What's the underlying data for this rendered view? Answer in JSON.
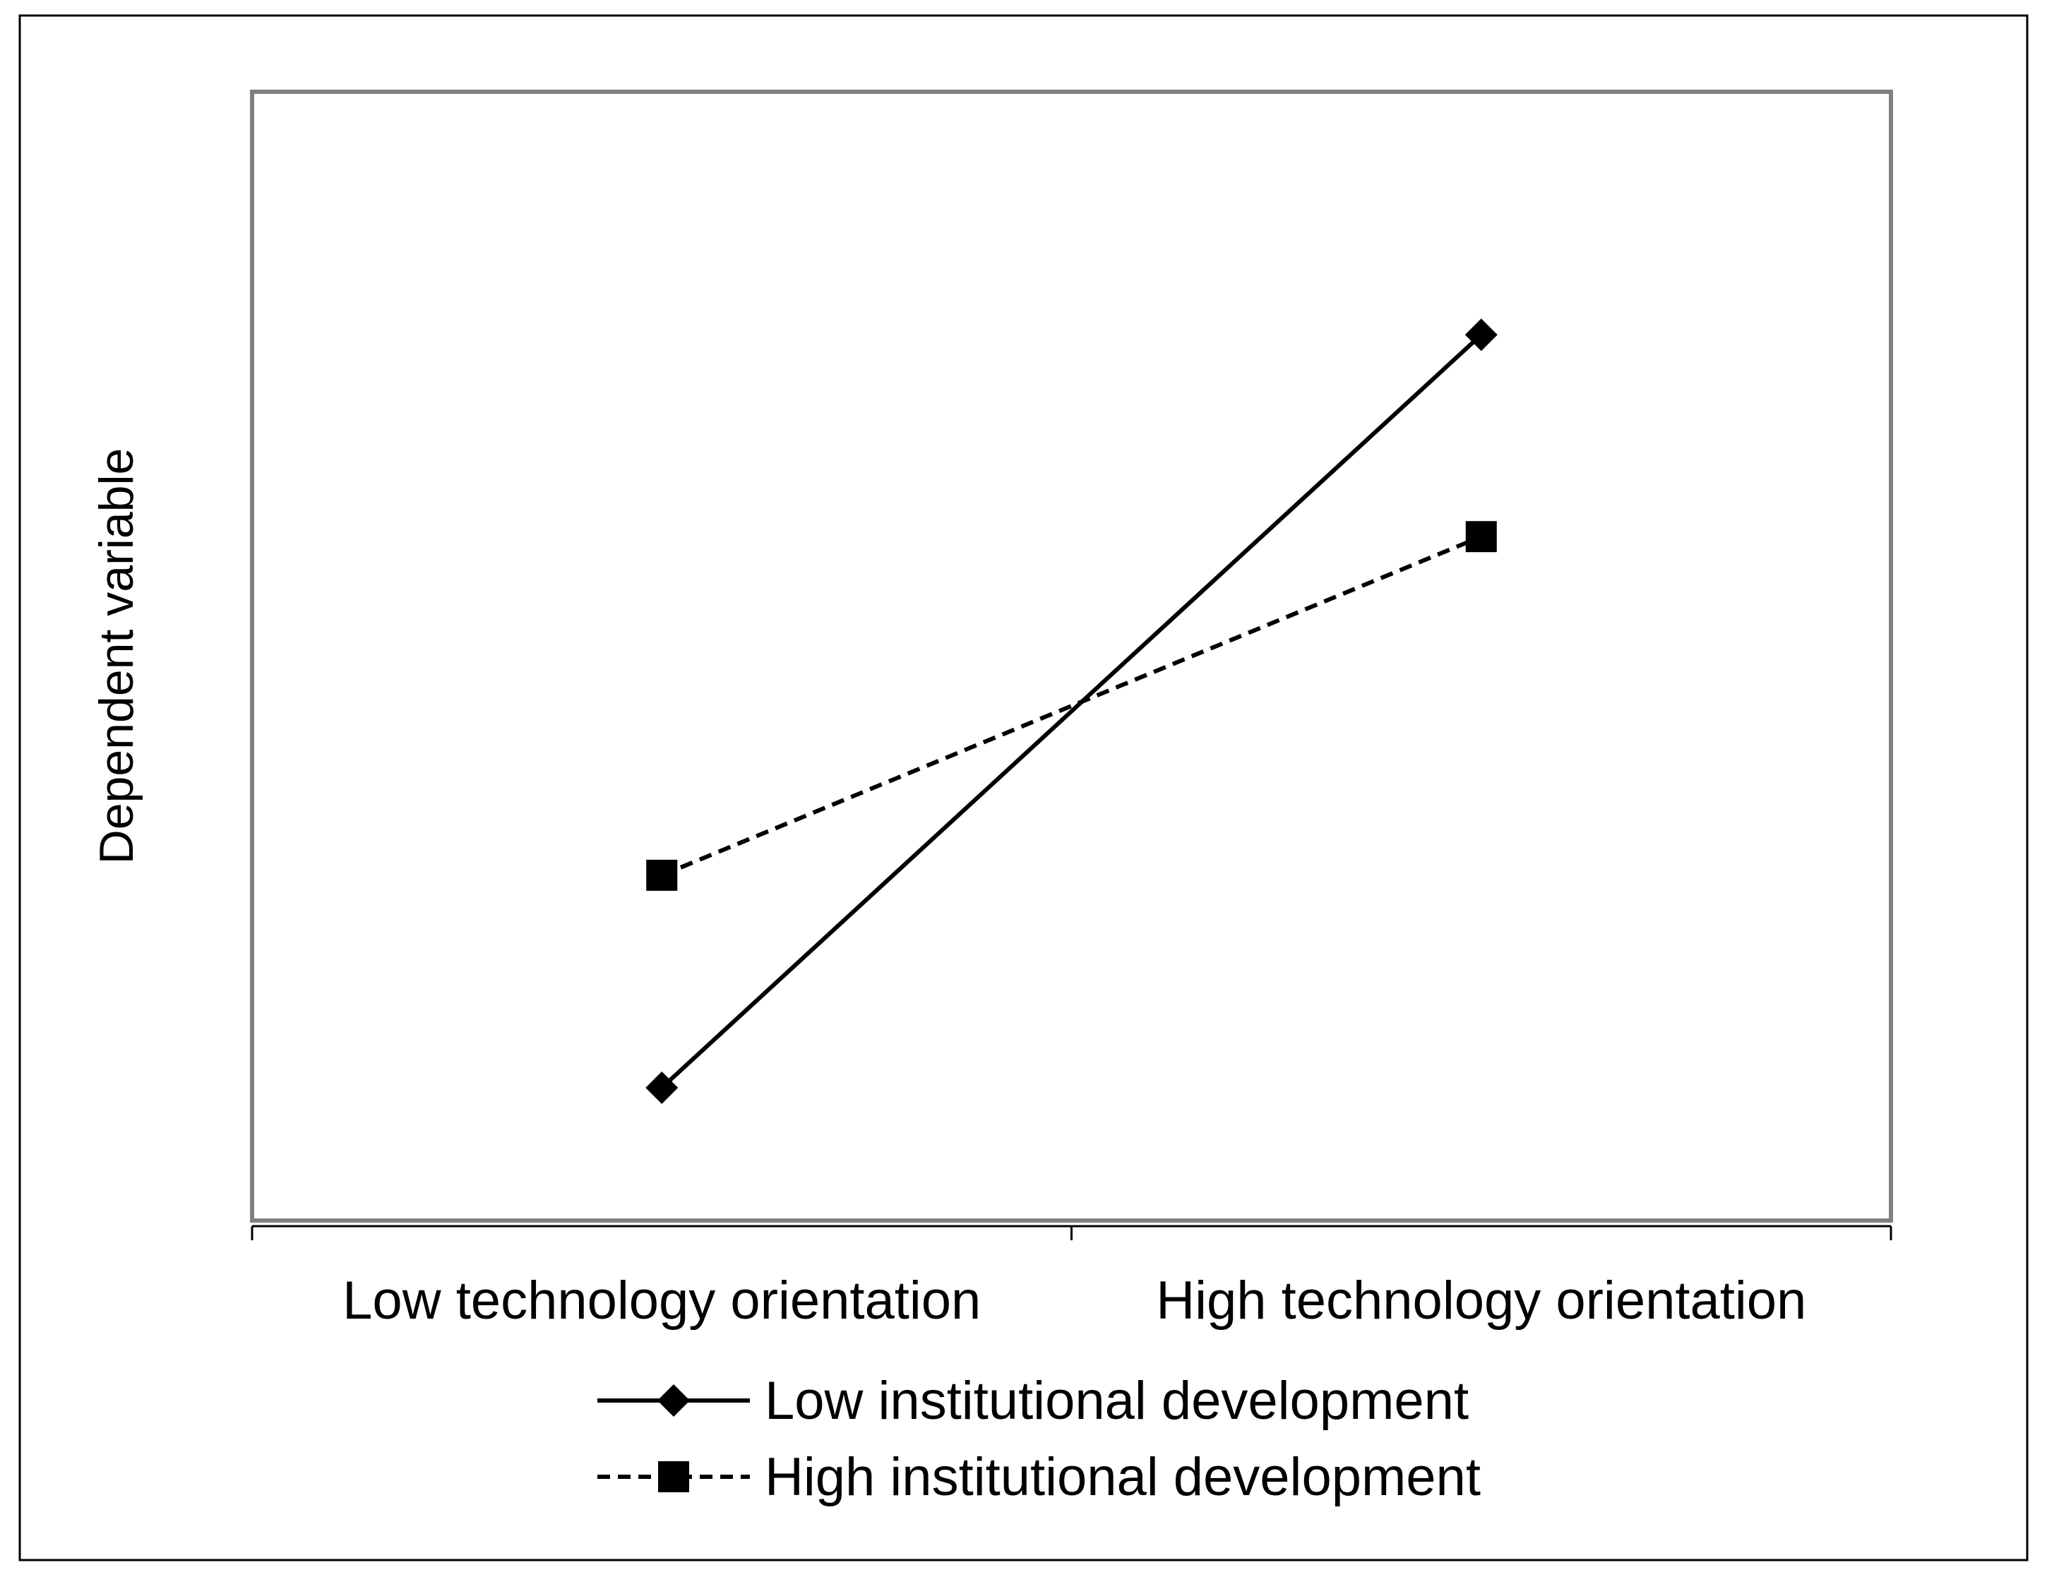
{
  "chart_data": {
    "type": "line",
    "title": "",
    "xlabel": "",
    "ylabel": "Dependent variable",
    "categories": [
      "Low technology orientation",
      "High technology orientation"
    ],
    "series": [
      {
        "name": "Low institutional development",
        "values": [
          1.0,
          6.67
        ],
        "line_style": "solid",
        "marker": "diamond",
        "color": "#000000"
      },
      {
        "name": "High institutional development",
        "values": [
          2.6,
          5.15
        ],
        "line_style": "dashed",
        "marker": "square",
        "color": "#000000"
      }
    ],
    "ylim": [
      0,
      8.5
    ],
    "grid": false,
    "y_ticks_shown": false,
    "legend": "bottom",
    "colors": {
      "plot_border": "#808080",
      "axis": "#000000",
      "outer_border": "#000000"
    }
  }
}
